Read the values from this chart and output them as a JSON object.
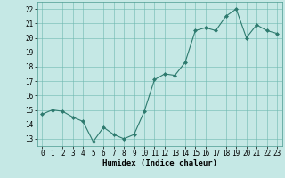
{
  "x": [
    0,
    1,
    2,
    3,
    4,
    5,
    6,
    7,
    8,
    9,
    10,
    11,
    12,
    13,
    14,
    15,
    16,
    17,
    18,
    19,
    20,
    21,
    22,
    23
  ],
  "y": [
    14.7,
    15.0,
    14.9,
    14.5,
    14.2,
    12.8,
    13.8,
    13.3,
    13.0,
    13.3,
    14.9,
    17.1,
    17.5,
    17.4,
    18.3,
    20.5,
    20.7,
    20.5,
    21.5,
    22.0,
    20.0,
    20.9,
    20.5,
    20.3
  ],
  "xlabel": "Humidex (Indice chaleur)",
  "line_color": "#2d7a6e",
  "marker_color": "#2d7a6e",
  "bg_color": "#c5e8e5",
  "grid_color": "#6db8b0",
  "ylim": [
    12.5,
    22.5
  ],
  "xlim": [
    -0.5,
    23.5
  ],
  "yticks": [
    13,
    14,
    15,
    16,
    17,
    18,
    19,
    20,
    21,
    22
  ],
  "xticks": [
    0,
    1,
    2,
    3,
    4,
    5,
    6,
    7,
    8,
    9,
    10,
    11,
    12,
    13,
    14,
    15,
    16,
    17,
    18,
    19,
    20,
    21,
    22,
    23
  ],
  "tick_fontsize": 5.5,
  "xlabel_fontsize": 6.5,
  "linewidth": 0.8,
  "markersize": 2.0
}
